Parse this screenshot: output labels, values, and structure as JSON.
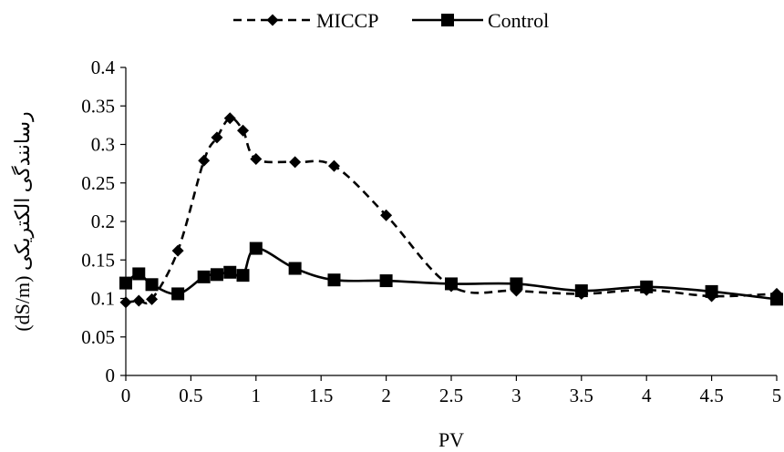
{
  "chart_data": {
    "type": "line",
    "title": "",
    "xlabel": "PV",
    "ylabel": "(dS/m) رسانندگی الکتریکی",
    "xlim": [
      0,
      5
    ],
    "ylim": [
      0,
      0.4
    ],
    "xticks": [
      "0",
      "0.5",
      "1",
      "1.5",
      "2",
      "2.5",
      "3",
      "3.5",
      "4",
      "4.5",
      "5"
    ],
    "yticks": [
      "0",
      "0.05",
      "0.1",
      "0.15",
      "0.2",
      "0.25",
      "0.3",
      "0.35",
      "0.4"
    ],
    "grid": false,
    "legend_position": "top",
    "series": [
      {
        "name": "MICCP",
        "line_style": "dashed",
        "marker": "diamond",
        "color": "#000000",
        "x": [
          0,
          0.1,
          0.2,
          0.4,
          0.6,
          0.7,
          0.8,
          0.9,
          1.0,
          1.3,
          1.6,
          2.0,
          2.5,
          3.0,
          3.5,
          4.0,
          4.5,
          5.0
        ],
        "y": [
          0.095,
          0.097,
          0.099,
          0.162,
          0.279,
          0.309,
          0.334,
          0.318,
          0.281,
          0.277,
          0.272,
          0.208,
          0.116,
          0.11,
          0.106,
          0.111,
          0.103,
          0.106
        ]
      },
      {
        "name": "Control",
        "line_style": "solid",
        "marker": "square",
        "color": "#000000",
        "x": [
          0,
          0.1,
          0.2,
          0.4,
          0.6,
          0.7,
          0.8,
          0.9,
          1.0,
          1.3,
          1.6,
          2.0,
          2.5,
          3.0,
          3.5,
          4.0,
          4.5,
          5.0
        ],
        "y": [
          0.12,
          0.132,
          0.118,
          0.106,
          0.128,
          0.131,
          0.134,
          0.13,
          0.165,
          0.139,
          0.124,
          0.123,
          0.119,
          0.119,
          0.11,
          0.115,
          0.109,
          0.099
        ]
      }
    ]
  }
}
